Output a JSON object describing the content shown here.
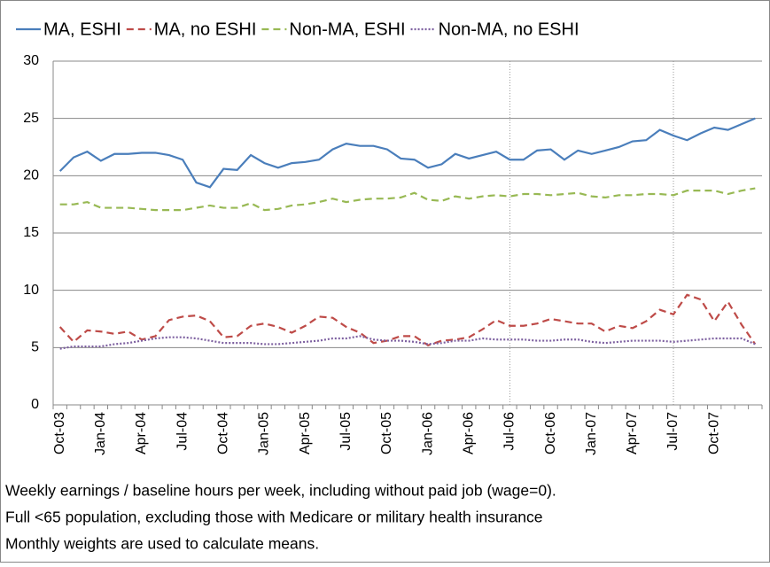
{
  "chart_data": {
    "type": "line",
    "categories": [
      "Oct-03",
      null,
      null,
      "Jan-04",
      null,
      null,
      "Apr-04",
      null,
      null,
      "Jul-04",
      null,
      null,
      "Oct-04",
      null,
      null,
      "Jan-05",
      null,
      null,
      "Apr-05",
      null,
      null,
      "Jul-05",
      null,
      null,
      "Oct-05",
      null,
      null,
      "Jan-06",
      null,
      null,
      "Apr-06",
      null,
      null,
      "Jul-06",
      null,
      null,
      "Oct-06",
      null,
      null,
      "Jan-07",
      null,
      null,
      "Apr-07",
      null,
      null,
      "Jul-07",
      null,
      null,
      "Oct-07",
      null,
      null,
      null
    ],
    "series": [
      {
        "name": "MA, ESHI",
        "color": "#4a7ebb",
        "line_style": "solid",
        "values": [
          20.4,
          21.6,
          22.1,
          21.3,
          21.9,
          21.9,
          22.0,
          22.0,
          21.8,
          21.4,
          19.4,
          19.0,
          20.6,
          20.5,
          21.8,
          21.1,
          20.7,
          21.1,
          21.2,
          21.4,
          22.3,
          22.8,
          22.6,
          22.6,
          22.3,
          21.5,
          21.4,
          20.7,
          21.0,
          21.9,
          21.5,
          21.8,
          22.1,
          21.4,
          21.4,
          22.2,
          22.3,
          21.4,
          22.2,
          21.9,
          22.2,
          22.5,
          23.0,
          23.1,
          24.0,
          23.5,
          23.1,
          23.7,
          24.2,
          24.0,
          24.5,
          25.0
        ]
      },
      {
        "name": "MA, no ESHI",
        "color": "#be4b48",
        "line_style": "dashed",
        "values": [
          6.8,
          5.5,
          6.5,
          6.4,
          6.2,
          6.4,
          5.7,
          6.0,
          7.4,
          7.7,
          7.8,
          7.3,
          5.9,
          6.0,
          6.9,
          7.1,
          6.8,
          6.3,
          6.9,
          7.7,
          7.6,
          6.8,
          6.3,
          5.4,
          5.6,
          6.0,
          6.0,
          5.2,
          5.6,
          5.7,
          5.9,
          6.6,
          7.4,
          6.9,
          6.9,
          7.1,
          7.5,
          7.3,
          7.1,
          7.1,
          6.4,
          6.9,
          6.7,
          7.3,
          8.3,
          7.9,
          9.6,
          9.2,
          7.3,
          9.0,
          7.0,
          5.3
        ]
      },
      {
        "name": "Non-MA, ESHI",
        "color": "#98b954",
        "line_style": "dashed",
        "values": [
          17.5,
          17.5,
          17.7,
          17.2,
          17.2,
          17.2,
          17.1,
          17.0,
          17.0,
          17.0,
          17.2,
          17.4,
          17.2,
          17.2,
          17.6,
          17.0,
          17.1,
          17.4,
          17.5,
          17.7,
          18.0,
          17.7,
          17.9,
          18.0,
          18.0,
          18.1,
          18.5,
          17.9,
          17.8,
          18.2,
          18.0,
          18.2,
          18.3,
          18.2,
          18.4,
          18.4,
          18.3,
          18.4,
          18.5,
          18.2,
          18.1,
          18.3,
          18.3,
          18.4,
          18.4,
          18.3,
          18.7,
          18.7,
          18.7,
          18.4,
          18.7,
          18.9
        ]
      },
      {
        "name": "Non-MA, no ESHI",
        "color": "#7d60a0",
        "line_style": "dotted",
        "values": [
          4.9,
          5.1,
          5.1,
          5.1,
          5.3,
          5.4,
          5.6,
          5.8,
          5.9,
          5.9,
          5.8,
          5.6,
          5.4,
          5.4,
          5.4,
          5.3,
          5.3,
          5.4,
          5.5,
          5.6,
          5.8,
          5.8,
          6.0,
          5.7,
          5.6,
          5.6,
          5.5,
          5.3,
          5.4,
          5.6,
          5.6,
          5.8,
          5.7,
          5.7,
          5.7,
          5.6,
          5.6,
          5.7,
          5.7,
          5.5,
          5.4,
          5.5,
          5.6,
          5.6,
          5.6,
          5.5,
          5.6,
          5.7,
          5.8,
          5.8,
          5.8,
          5.3
        ]
      }
    ],
    "ylim": [
      0,
      30
    ],
    "yticks": [
      0,
      5,
      10,
      15,
      20,
      25,
      30
    ],
    "grid": true,
    "legend": "top",
    "notes": [
      "Weekly earnings / baseline hours per week, including without paid job (wage=0).",
      "Full <65 population, excluding those with Medicare or military health insurance",
      "Monthly weights are used to calculate means."
    ]
  }
}
